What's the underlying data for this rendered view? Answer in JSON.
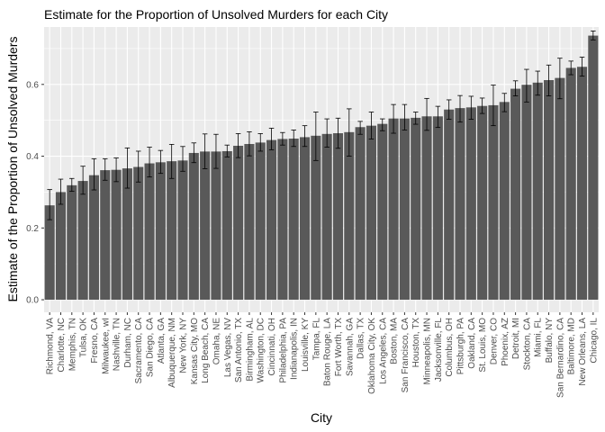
{
  "chart_data": {
    "type": "bar",
    "title": "Estimate for the Proportion of Unsolved Murders for each City",
    "xlabel": "City",
    "ylabel": "Estimate of the Proportion of Unsolved Murders",
    "ylim": [
      -0.035,
      0.76
    ],
    "yticks": [
      0.0,
      0.2,
      0.4,
      0.6
    ],
    "ytick_labels": [
      "0.0",
      "0.2",
      "0.4",
      "0.6"
    ],
    "grid": true,
    "panel_color": "#ebebeb",
    "bar_color": "#595959",
    "categories": [
      "Richmond, VA",
      "Charlotte, NC",
      "Memphis, TN",
      "Tulsa, OK",
      "Fresno, CA",
      "Milwaukee, wI",
      "Nashville, TN",
      "Durham, NC",
      "Sacramento, CA",
      "San Diego, CA",
      "Atlanta, GA",
      "Albuquerque, NM",
      "New York, NY",
      "Kansas City, MO",
      "Long Beach, CA",
      "Omaha, NE",
      "Las Vegas, NV",
      "San Antonio, TX",
      "Birmingham, AL",
      "Washington, DC",
      "Cincinnati, OH",
      "Philadelphia, PA",
      "Indianapolis, IN",
      "Louisville, KY",
      "Tampa, FL",
      "Baton Rouge, LA",
      "Fort Worth, TX",
      "Savannah, GA",
      "Dallas, TX",
      "Oklahoma City, OK",
      "Los Angeles, CA",
      "Boston, MA",
      "San Francisco, CA",
      "Houston, TX",
      "Minneapolis, MN",
      "Jacksonville, FL",
      "Columbus, OH",
      "Pittsburgh, PA",
      "Oakland, CA",
      "St. Louis, MO",
      "Denver, CO",
      "Phoenix, AZ",
      "Detroit, MI",
      "Stockton, CA",
      "Miami, FL",
      "Buffalo, NY",
      "San Bernardino, CA",
      "Baltimore, MD",
      "New Orleans, LA",
      "Chicago, IL"
    ],
    "values": [
      0.263,
      0.3,
      0.319,
      0.331,
      0.347,
      0.361,
      0.362,
      0.366,
      0.37,
      0.38,
      0.383,
      0.386,
      0.388,
      0.409,
      0.413,
      0.413,
      0.414,
      0.429,
      0.434,
      0.438,
      0.445,
      0.448,
      0.449,
      0.453,
      0.457,
      0.462,
      0.464,
      0.467,
      0.481,
      0.485,
      0.49,
      0.505,
      0.505,
      0.507,
      0.511,
      0.511,
      0.53,
      0.534,
      0.536,
      0.54,
      0.542,
      0.551,
      0.588,
      0.599,
      0.605,
      0.612,
      0.618,
      0.646,
      0.649,
      0.736
    ],
    "ci_low": [
      0.223,
      0.266,
      0.302,
      0.294,
      0.306,
      0.333,
      0.329,
      0.311,
      0.328,
      0.342,
      0.352,
      0.338,
      0.358,
      0.382,
      0.365,
      0.366,
      0.398,
      0.396,
      0.401,
      0.414,
      0.418,
      0.431,
      0.427,
      0.427,
      0.388,
      0.425,
      0.422,
      0.4,
      0.461,
      0.448,
      0.471,
      0.464,
      0.473,
      0.489,
      0.472,
      0.48,
      0.503,
      0.495,
      0.503,
      0.519,
      0.485,
      0.524,
      0.568,
      0.551,
      0.57,
      0.568,
      0.56,
      0.627,
      0.623,
      0.724
    ],
    "ci_high": [
      0.307,
      0.336,
      0.338,
      0.372,
      0.393,
      0.393,
      0.395,
      0.423,
      0.414,
      0.425,
      0.416,
      0.433,
      0.427,
      0.437,
      0.462,
      0.461,
      0.431,
      0.463,
      0.468,
      0.463,
      0.478,
      0.466,
      0.473,
      0.485,
      0.523,
      0.504,
      0.506,
      0.532,
      0.497,
      0.523,
      0.504,
      0.544,
      0.544,
      0.523,
      0.561,
      0.539,
      0.557,
      0.569,
      0.567,
      0.562,
      0.598,
      0.575,
      0.61,
      0.642,
      0.637,
      0.654,
      0.673,
      0.665,
      0.676,
      0.749
    ]
  }
}
